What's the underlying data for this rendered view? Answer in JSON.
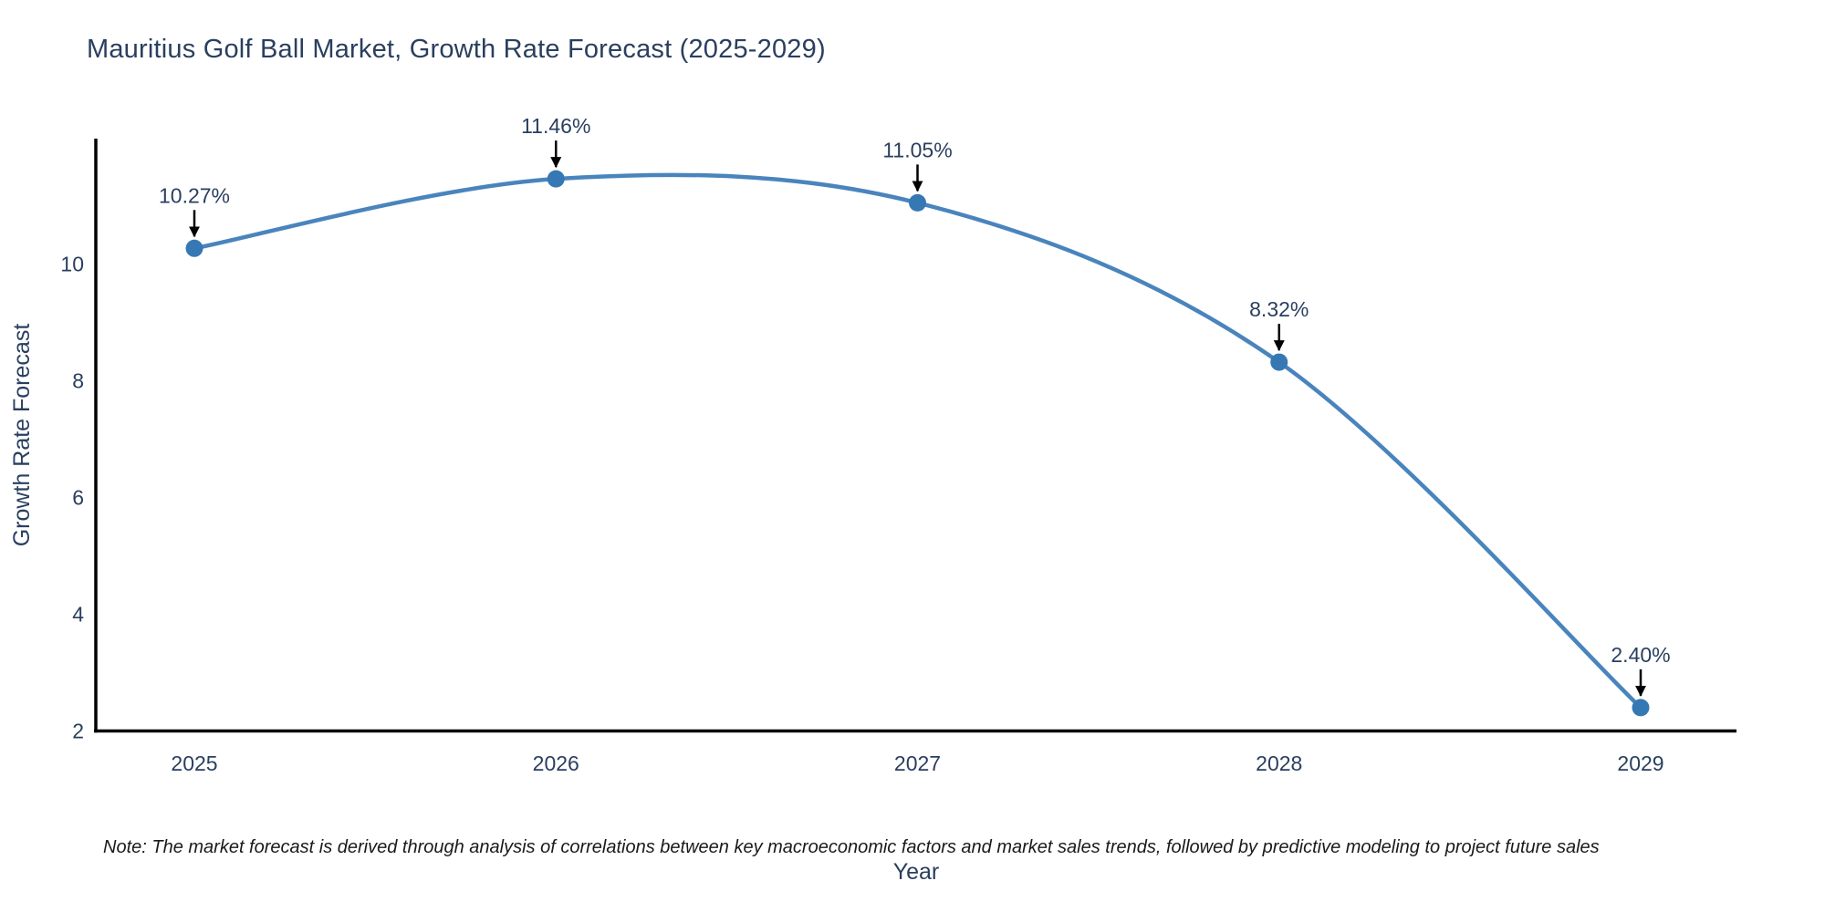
{
  "title": "Mauritius Golf Ball Market, Growth Rate Forecast (2025-2029)",
  "note": "Note: The market forecast is derived through analysis of correlations between key macroeconomic factors and market sales trends, followed by predictive modeling to project future sales",
  "colors": {
    "background": "#ffffff",
    "line": "#4a84bd",
    "marker": "#3678b4",
    "axis": "#000000",
    "text": "#2a3f5f",
    "arrow": "#000000",
    "note_text": "#1a1a1a"
  },
  "chart_data": {
    "type": "line",
    "title": "Mauritius Golf Ball Market, Growth Rate Forecast (2025-2029)",
    "x": [
      "2025",
      "2026",
      "2027",
      "2028",
      "2029"
    ],
    "values": [
      10.27,
      11.46,
      11.05,
      8.32,
      2.4
    ],
    "point_labels": [
      "10.27%",
      "11.46%",
      "11.05%",
      "8.32%",
      "2.40%"
    ],
    "xlabel": "Year",
    "ylabel": "Growth Rate Forecast",
    "yticks": [
      2,
      4,
      6,
      8,
      10
    ],
    "ylim": [
      2,
      12.15
    ],
    "line_shape": "spline",
    "markers": true,
    "grid": false,
    "legend": false,
    "annotation_style": "arrow-down-to-point"
  }
}
